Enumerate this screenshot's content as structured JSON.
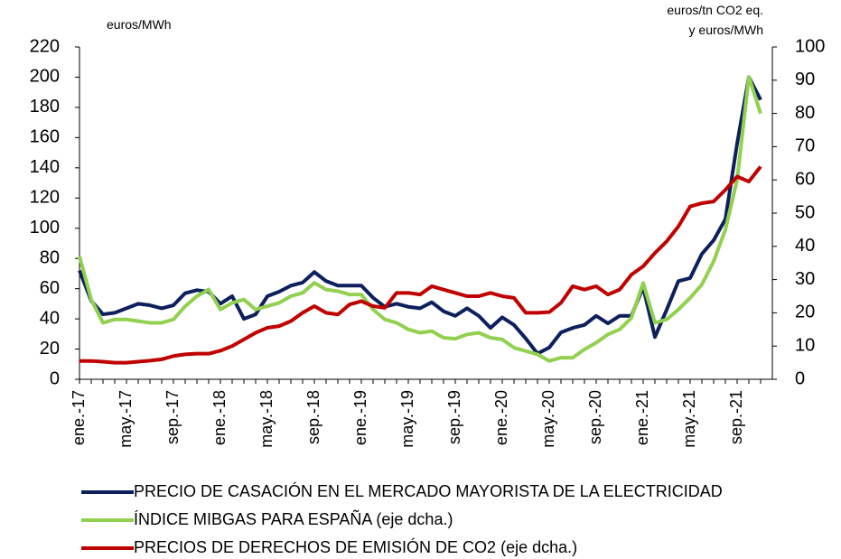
{
  "chart_data": {
    "type": "line",
    "y_label": "euros/MWh",
    "y2_label": [
      "euros/tn CO2 eq.",
      "y euros/MWh"
    ],
    "categories": [
      "ene.-17",
      null,
      null,
      null,
      "may.-17",
      null,
      null,
      null,
      "sep.-17",
      null,
      null,
      null,
      "ene.-18",
      null,
      null,
      null,
      "may.-18",
      null,
      null,
      null,
      "sep.-18",
      null,
      null,
      null,
      "ene.-19",
      null,
      null,
      null,
      "may.-19",
      null,
      null,
      null,
      "sep.-19",
      null,
      null,
      null,
      "ene.-20",
      null,
      null,
      null,
      "may.-20",
      null,
      null,
      null,
      "sep.-20",
      null,
      null,
      null,
      "ene.-21",
      null,
      null,
      null,
      "may.-21",
      null,
      null,
      null,
      "sep.-21",
      null,
      null
    ],
    "ylim": [
      0,
      220
    ],
    "yticks": [
      0,
      20,
      40,
      60,
      80,
      100,
      120,
      140,
      160,
      180,
      200,
      220
    ],
    "y2lim": [
      0,
      100
    ],
    "y2ticks": [
      0,
      10,
      20,
      30,
      40,
      50,
      60,
      70,
      80,
      90,
      100
    ],
    "series": [
      {
        "name": "PRECIO DE CASACIÓN EN EL MERCADO MAYORISTA DE LA ELECTRICIDAD",
        "color": "#0d1f5c",
        "values": [
          72,
          52,
          43,
          44,
          47,
          50,
          49,
          47,
          49,
          57,
          59,
          58,
          50,
          55,
          40,
          43,
          55,
          58,
          62,
          64,
          71,
          65,
          62,
          62,
          62,
          54,
          48,
          50,
          48,
          47,
          51,
          45,
          42,
          47,
          42,
          34,
          41,
          36,
          27,
          17,
          21,
          31,
          34,
          36,
          42,
          37,
          42,
          42,
          61,
          28,
          46,
          65,
          67,
          83,
          92,
          106,
          156,
          200,
          185
        ]
      },
      {
        "name": "ÍNDICE MIBGAS PARA ESPAÑA  (eje dcha.)",
        "color": "#92d050",
        "axis": "y2",
        "values": [
          37,
          24,
          17,
          18,
          18,
          17.5,
          17,
          17,
          18,
          22,
          25,
          27,
          21,
          23,
          24,
          21,
          22,
          23,
          25,
          26,
          29,
          27,
          26.5,
          25.5,
          25.5,
          21,
          18,
          17,
          15,
          14,
          14.5,
          12.5,
          12.2,
          13.5,
          14,
          12.5,
          12,
          9.5,
          8.5,
          7.5,
          5.5,
          6.5,
          6.5,
          9,
          11,
          13.5,
          15,
          18.5,
          29,
          17,
          18,
          21,
          24.5,
          28.5,
          35.5,
          45,
          60,
          91,
          80
        ]
      },
      {
        "name": "PRECIOS DE DERECHOS DE EMISIÓN DE CO2 (eje dcha.)",
        "color": "#c00000",
        "axis": "y2",
        "values": [
          5.5,
          5.5,
          5.3,
          5,
          5,
          5.3,
          5.6,
          6,
          7,
          7.5,
          7.7,
          7.7,
          8.6,
          10,
          12,
          14,
          15.5,
          16,
          17.5,
          20,
          22,
          20,
          19.5,
          22.5,
          23.5,
          22,
          21.5,
          26,
          26,
          25.5,
          28,
          27,
          26,
          25,
          25,
          26,
          25,
          24.5,
          20,
          20,
          20.2,
          23,
          28,
          27,
          28,
          25.5,
          27,
          31.5,
          34,
          38,
          41.5,
          46,
          52,
          53,
          53.5,
          57,
          61,
          59.5,
          64
        ]
      }
    ]
  }
}
